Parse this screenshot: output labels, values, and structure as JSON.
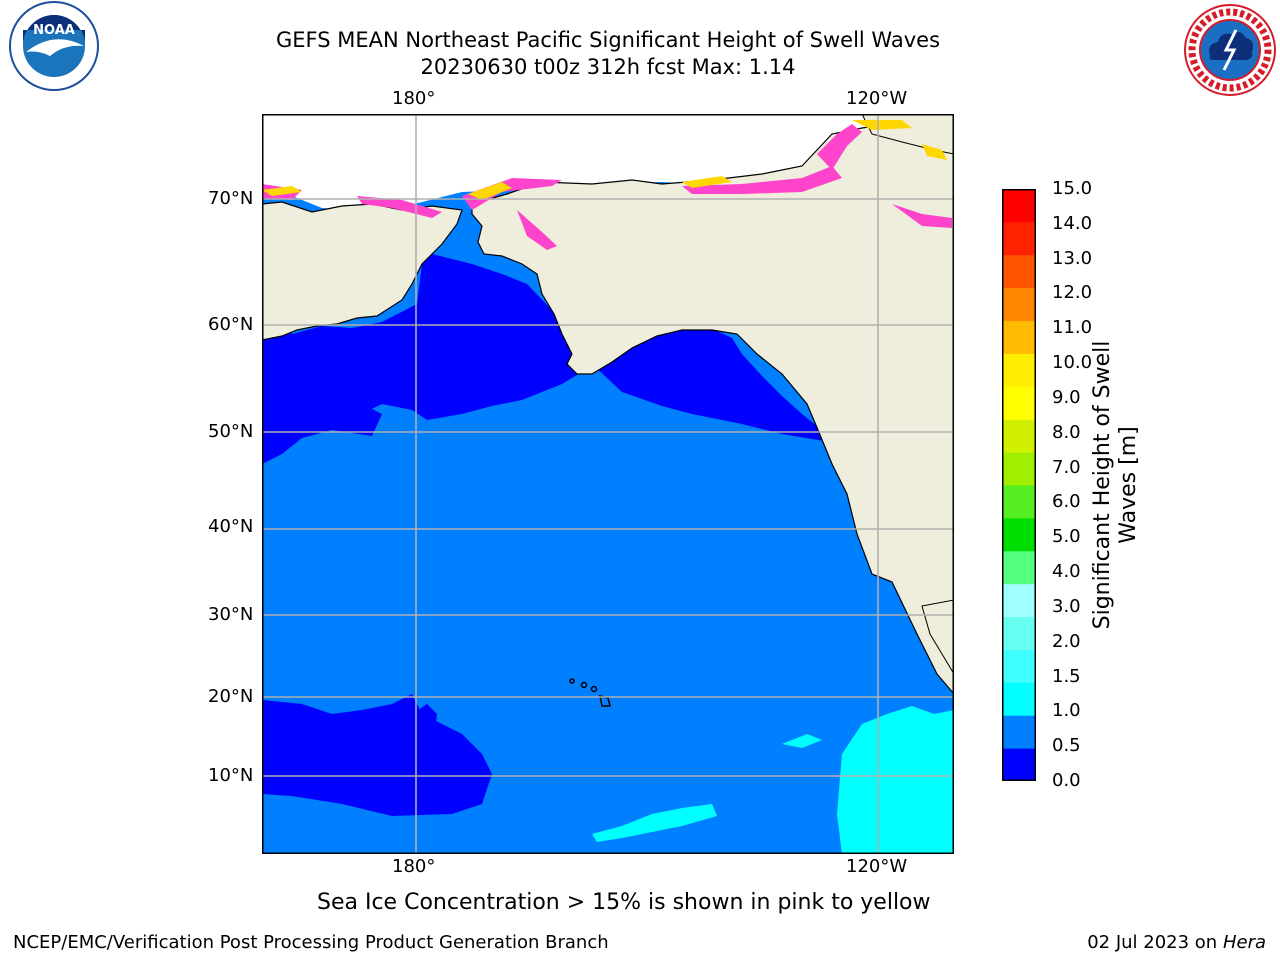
{
  "title": {
    "line1": "GEFS MEAN Northeast Pacific Significant Height of Swell Waves",
    "line2": "20230630 t00z 312h fcst   Max: 1.14"
  },
  "logos": {
    "left": "NOAA",
    "left_icon": "noaa-seagull-logo",
    "right_icon": "national-weather-service-logo",
    "right_ring": "NATIONAL WEATHER SERVICE"
  },
  "map": {
    "lon_labels_top": [
      "180°",
      "120°W"
    ],
    "lon_labels_bottom": [
      "180°",
      "120°W"
    ],
    "lat_labels": [
      "70°N",
      "60°N",
      "50°N",
      "40°N",
      "30°N",
      "20°N",
      "10°N"
    ],
    "colors": {
      "land": "#efeddc",
      "ocean_0_5_1_0": "#0080ff",
      "ocean_0_0_5": "#0000ff",
      "ocean_1_0_1_5": "#00ffff",
      "grid": "#b0b0b0",
      "ice_pink": "#ff44cc",
      "ice_yellow": "#ffd700"
    }
  },
  "colorbar": {
    "title_line1": "Significant Height of Swell",
    "title_line2": "Waves [m]",
    "labels": [
      "15.0",
      "14.0",
      "13.0",
      "12.0",
      "11.0",
      "10.0",
      "9.0",
      "8.0",
      "7.0",
      "6.0",
      "5.0",
      "4.0",
      "3.0",
      "2.0",
      "1.5",
      "1.0",
      "0.5",
      "0.0"
    ],
    "colors_bottom_to_top": [
      "#0000ff",
      "#0080ff",
      "#00ffff",
      "#40ffff",
      "#66fff0",
      "#a0ffff",
      "#55ff80",
      "#00dd00",
      "#55ee22",
      "#a0ee00",
      "#d0f000",
      "#ffff00",
      "#ffee00",
      "#ffbb00",
      "#ff8800",
      "#ff5500",
      "#ff2200",
      "#ff0000"
    ]
  },
  "note": "Sea Ice Concentration > 15% is shown in pink to yellow",
  "footer": {
    "left": "NCEP/EMC/Verification Post Processing Product Generation Branch",
    "right_prefix": "02 Jul 2023 on ",
    "right_machine": "Hera"
  }
}
